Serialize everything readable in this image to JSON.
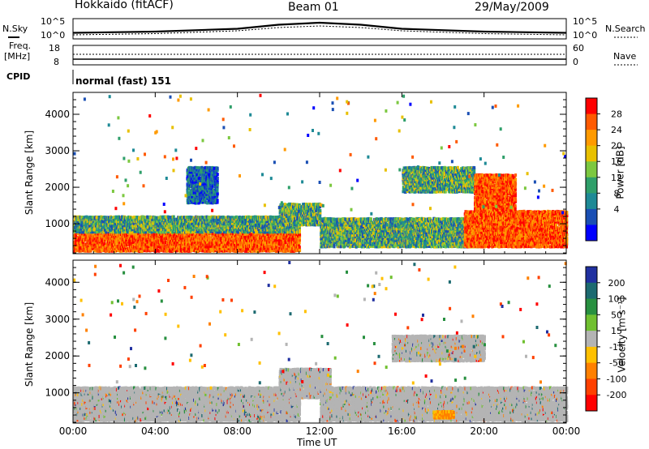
{
  "header": {
    "title": "Hokkaido (fitACF)",
    "beam": "Beam 01",
    "date": "29/May/2009"
  },
  "noise_panel": {
    "left_label": "N.Sky",
    "right_label": "N.Search",
    "left_ticks": [
      "10^5",
      "10^0"
    ],
    "right_ticks": [
      "10^5",
      "10^0"
    ]
  },
  "freq_panel": {
    "left_label": "Freq.",
    "left_unit": "[MHz]",
    "right_label": "Nave",
    "left_ticks": [
      "18",
      "8"
    ],
    "right_ticks": [
      "60",
      "0"
    ]
  },
  "cpid": {
    "label": "CPID",
    "value": "normal (fast) 151"
  },
  "power_panel": {
    "ylabel": "Slant Range [km]",
    "yticks": [
      "4000",
      "3000",
      "2000",
      "1000"
    ],
    "colorbar_label": "Power [dB]",
    "colorbar_ticks": [
      "28",
      "24",
      "20",
      "16",
      "12",
      "8",
      "4"
    ],
    "colorbar_colors": [
      "#ff0000",
      "#ff5a00",
      "#ff9a00",
      "#e8c000",
      "#7cc840",
      "#2f9f6a",
      "#1e8a96",
      "#1a4fb4",
      "#0000ff"
    ]
  },
  "velocity_panel": {
    "ylabel": "Slant Range [km]",
    "yticks": [
      "4000",
      "3000",
      "2000",
      "1000"
    ],
    "colorbar_label": "Velocity [m s⁻¹]",
    "colorbar_ticks": [
      "200",
      "100",
      "50",
      "15",
      "-15",
      "-50",
      "-100",
      "-200"
    ],
    "colorbar_colors": [
      "#2030a0",
      "#1c6a70",
      "#289040",
      "#70c030",
      "#b4b4b4",
      "#ffc000",
      "#ff8000",
      "#ff4000",
      "#ff0000"
    ]
  },
  "xaxis": {
    "label": "Time UT",
    "ticks": [
      "00:00",
      "04:00",
      "08:00",
      "12:00",
      "16:00",
      "20:00",
      "00:00"
    ]
  },
  "chart_data": [
    {
      "type": "line",
      "title": "",
      "series": [
        {
          "name": "N.Sky",
          "x_hours": [
            0,
            4,
            8,
            10,
            12,
            14,
            16,
            20,
            24
          ],
          "values": [
            1.5,
            1.8,
            2.5,
            3.5,
            4.0,
            3.5,
            2.5,
            1.8,
            1.5
          ]
        },
        {
          "name": "N.Search",
          "x_hours": [
            0,
            4,
            8,
            10,
            12,
            14,
            16,
            20,
            24
          ],
          "values": [
            1.0,
            1.3,
            2.0,
            2.8,
            3.2,
            2.8,
            2.0,
            1.3,
            1.0
          ]
        }
      ],
      "ylim": [
        0,
        5
      ]
    },
    {
      "type": "line",
      "series": [
        {
          "name": "Freq",
          "x_hours": [
            0,
            24
          ],
          "values": [
            10,
            10
          ]
        },
        {
          "name": "Nave",
          "x_hours": [
            0,
            24
          ],
          "values": [
            30,
            30
          ]
        }
      ]
    },
    {
      "type": "heatmap",
      "title": "Power",
      "xlim_hours": [
        0,
        24
      ],
      "ylim_km": [
        180,
        4600
      ],
      "regions": [
        {
          "x_hours": [
            0,
            11
          ],
          "y_km": [
            180,
            700
          ],
          "level": "high"
        },
        {
          "x_hours": [
            0,
            11
          ],
          "y_km": [
            700,
            1150
          ],
          "level": "mid"
        },
        {
          "x_hours": [
            10,
            12
          ],
          "y_km": [
            900,
            1500
          ],
          "level": "mid"
        },
        {
          "x_hours": [
            12,
            20
          ],
          "y_km": [
            300,
            1100
          ],
          "level": "mid"
        },
        {
          "x_hours": [
            16,
            19.5
          ],
          "y_km": [
            1800,
            2500
          ],
          "level": "mid"
        },
        {
          "x_hours": [
            19,
            24
          ],
          "y_km": [
            300,
            1300
          ],
          "level": "high"
        },
        {
          "x_hours": [
            19.5,
            21.5
          ],
          "y_km": [
            1300,
            2300
          ],
          "level": "high"
        },
        {
          "x_hours": [
            5.5,
            7
          ],
          "y_km": [
            1500,
            2500
          ],
          "level": "low"
        }
      ]
    },
    {
      "type": "heatmap",
      "title": "Velocity",
      "xlim_hours": [
        0,
        24
      ],
      "ylim_km": [
        180,
        4600
      ],
      "regions": [
        {
          "x_hours": [
            0,
            11
          ],
          "y_km": [
            180,
            1100
          ],
          "level": "near-zero"
        },
        {
          "x_hours": [
            12,
            24
          ],
          "y_km": [
            180,
            1100
          ],
          "level": "near-zero"
        },
        {
          "x_hours": [
            15.5,
            20
          ],
          "y_km": [
            1800,
            2500
          ],
          "level": "near-zero"
        },
        {
          "x_hours": [
            17.5,
            18.5
          ],
          "y_km": [
            250,
            450
          ],
          "level": "negative"
        },
        {
          "x_hours": [
            10,
            12.5
          ],
          "y_km": [
            800,
            1600
          ],
          "level": "near-zero"
        }
      ]
    }
  ]
}
